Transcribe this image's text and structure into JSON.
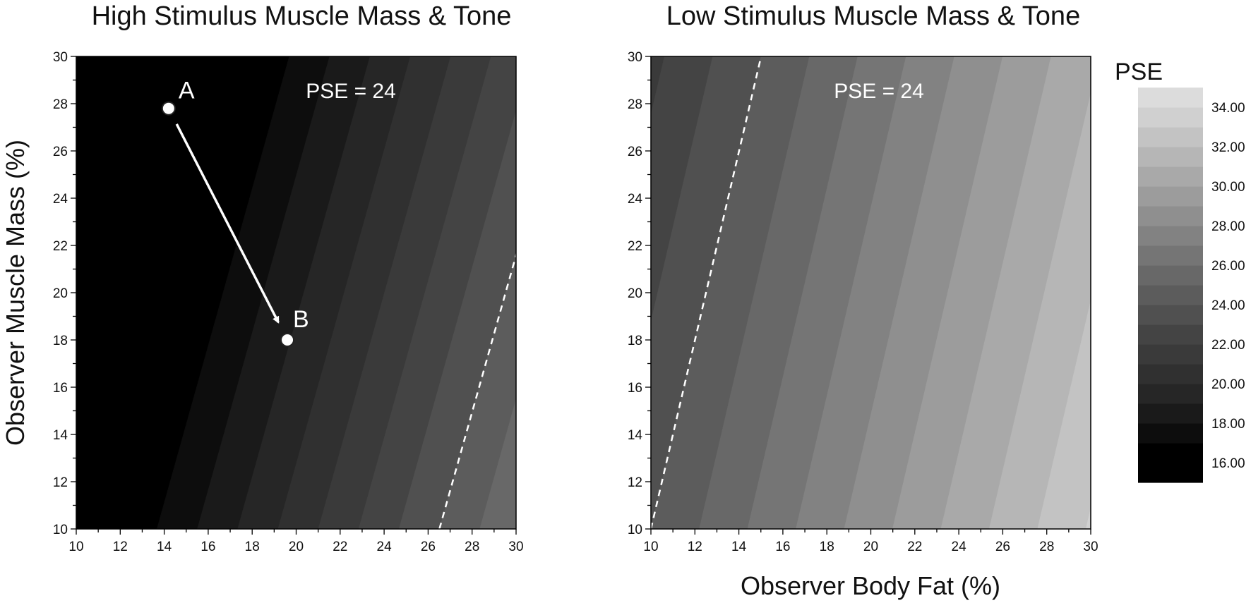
{
  "chart_data": [
    {
      "type": "contour",
      "title": "High Stimulus Muscle Mass & Tone",
      "xlabel": "",
      "ylabel": "Observer Muscle Mass (%)",
      "xlim": [
        10,
        30
      ],
      "ylim": [
        10,
        30
      ],
      "xticks": [
        "10",
        "12",
        "14",
        "16",
        "18",
        "20",
        "22",
        "24",
        "26",
        "28",
        "30"
      ],
      "yticks": [
        "10",
        "12",
        "14",
        "16",
        "18",
        "20",
        "22",
        "24",
        "26",
        "28",
        "30"
      ],
      "surface": {
        "zmin": 15,
        "zmax": 35,
        "pse_at_x10_y10": 15.0,
        "pse_per_percent_fat": 0.545,
        "pse_per_percent_muscle": -0.164
      },
      "contour_line": {
        "label": "PSE = 24",
        "value": 24,
        "style": "dashed"
      },
      "points": [
        {
          "name": "A",
          "x": 14.2,
          "y": 27.8
        },
        {
          "name": "B",
          "x": 19.6,
          "y": 18.0
        }
      ],
      "arrow": {
        "from": "A",
        "to": "B"
      }
    },
    {
      "type": "contour",
      "title": "Low Stimulus Muscle Mass & Tone",
      "xlabel": "Observer Body Fat (%)",
      "ylabel": "",
      "xlim": [
        10,
        30
      ],
      "ylim": [
        10,
        30
      ],
      "xticks": [
        "10",
        "12",
        "14",
        "16",
        "18",
        "20",
        "22",
        "24",
        "26",
        "28",
        "30"
      ],
      "yticks": [
        "10",
        "12",
        "14",
        "16",
        "18",
        "20",
        "22",
        "24",
        "26",
        "28",
        "30"
      ],
      "surface": {
        "zmin": 15,
        "zmax": 35,
        "pse_at_x10_y10": 24.0,
        "pse_per_percent_fat": 0.455,
        "pse_per_percent_muscle": -0.114
      },
      "contour_line": {
        "label": "PSE = 24",
        "value": 24,
        "style": "dashed"
      },
      "points": [],
      "arrow": null
    }
  ],
  "colorbar": {
    "title": "PSE",
    "tick_labels": [
      "34.00",
      "32.00",
      "30.00",
      "28.00",
      "26.00",
      "24.00",
      "22.00",
      "20.00",
      "18.00",
      "16.00"
    ],
    "levels": [
      15,
      17,
      18,
      19,
      20,
      21,
      22,
      23,
      24,
      25,
      26,
      27,
      28,
      29,
      30,
      31,
      32,
      33,
      34,
      35
    ],
    "colors": [
      "#000000",
      "#0d0d0d",
      "#1a1a1a",
      "#262626",
      "#303030",
      "#3a3a3a",
      "#444444",
      "#505050",
      "#5c5c5c",
      "#686868",
      "#757575",
      "#828282",
      "#8f8f8f",
      "#9c9c9c",
      "#a9a9a9",
      "#b6b6b6",
      "#c3c3c3",
      "#d0d0d0",
      "#dcdcdc",
      "#e9e9e9"
    ]
  }
}
